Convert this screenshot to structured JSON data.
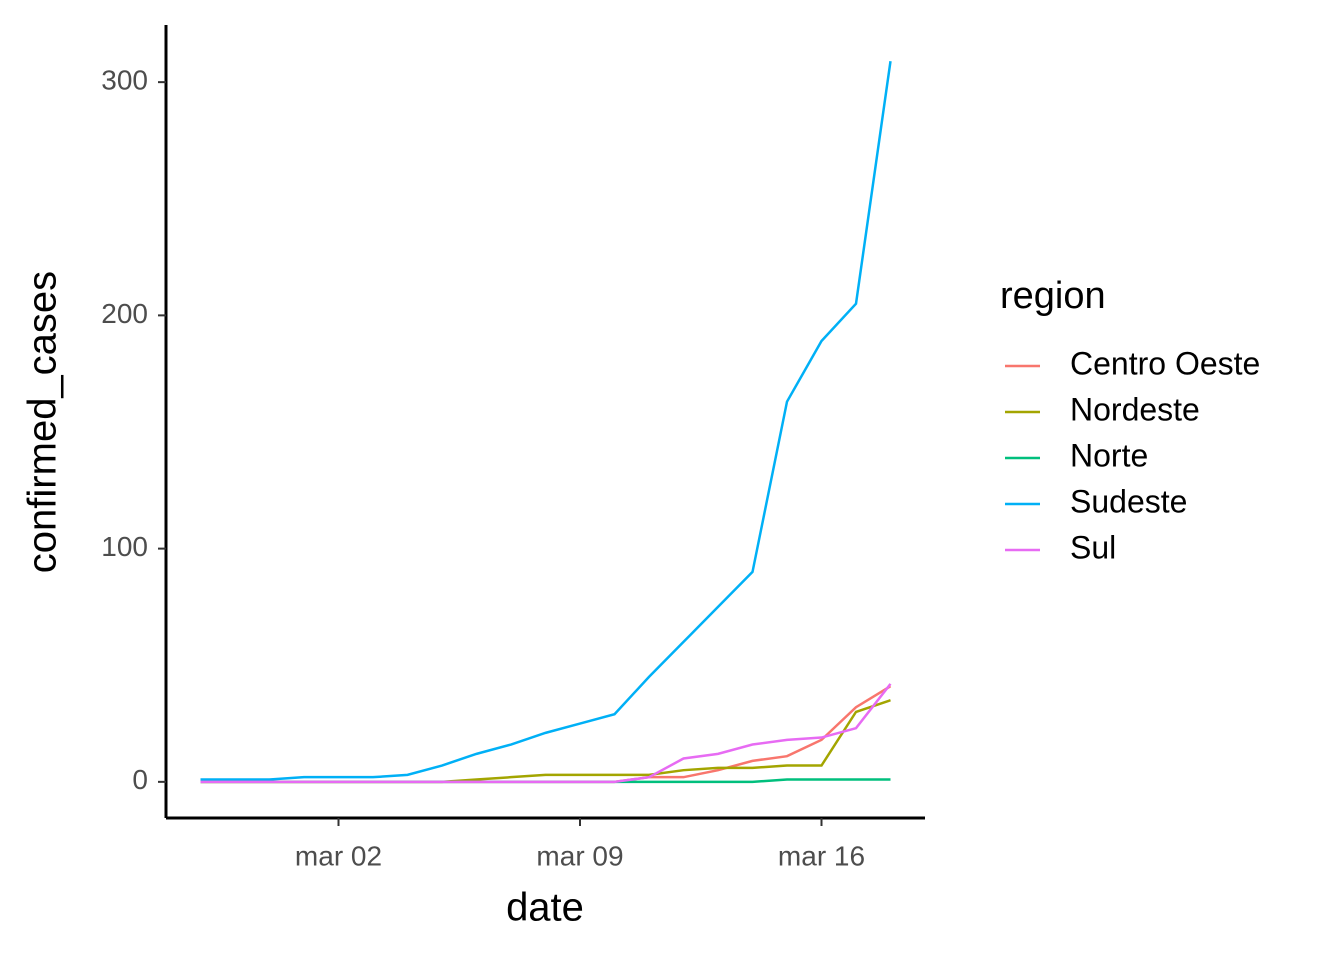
{
  "chart_data": {
    "type": "line",
    "xlabel": "date",
    "ylabel": "confirmed_cases",
    "legend_title": "region",
    "legend_position": "right",
    "x": [
      "02-26",
      "02-27",
      "02-28",
      "02-29",
      "03-01",
      "03-02",
      "03-03",
      "03-04",
      "03-05",
      "03-06",
      "03-07",
      "03-08",
      "03-09",
      "03-10",
      "03-11",
      "03-12",
      "03-13",
      "03-14",
      "03-15",
      "03-16",
      "03-17",
      "03-18"
    ],
    "series": [
      {
        "name": "Centro Oeste",
        "color": "#F8766D",
        "values": [
          0,
          0,
          0,
          0,
          0,
          0,
          0,
          0,
          0,
          0,
          0,
          0,
          0,
          0,
          2,
          2,
          5,
          9,
          11,
          18,
          32,
          41
        ]
      },
      {
        "name": "Nordeste",
        "color": "#A3A500",
        "values": [
          0,
          0,
          0,
          0,
          0,
          0,
          0,
          0,
          0,
          1,
          2,
          3,
          3,
          3,
          3,
          5,
          6,
          6,
          7,
          7,
          30,
          35
        ]
      },
      {
        "name": "Norte",
        "color": "#00BF7D",
        "values": [
          0,
          0,
          0,
          0,
          0,
          0,
          0,
          0,
          0,
          0,
          0,
          0,
          0,
          0,
          0,
          0,
          0,
          0,
          1,
          1,
          1,
          1
        ]
      },
      {
        "name": "Sudeste",
        "color": "#00B0F6",
        "values": [
          1,
          1,
          1,
          2,
          2,
          2,
          2,
          3,
          7,
          12,
          16,
          21,
          25,
          29,
          45,
          60,
          75,
          90,
          163,
          189,
          205,
          309
        ]
      },
      {
        "name": "Sul",
        "color": "#E76BF3",
        "values": [
          0,
          0,
          0,
          0,
          0,
          0,
          0,
          0,
          0,
          0,
          0,
          0,
          0,
          0,
          2,
          10,
          12,
          16,
          18,
          19,
          23,
          42
        ]
      }
    ],
    "xlim": [
      "02-25",
      "03-19"
    ],
    "xticks": [
      {
        "value": "03-02",
        "label": "mar 02"
      },
      {
        "value": "03-09",
        "label": "mar 09"
      },
      {
        "value": "03-16",
        "label": "mar 16"
      }
    ],
    "ylim": [
      -15.5,
      324.5
    ],
    "yticks": [
      0,
      100,
      200,
      300
    ],
    "grid": false
  }
}
